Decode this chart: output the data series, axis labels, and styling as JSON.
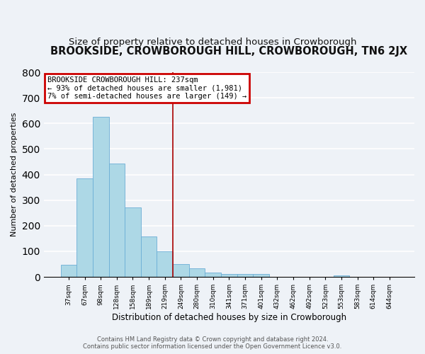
{
  "title": "BROOKSIDE, CROWBOROUGH HILL, CROWBOROUGH, TN6 2JX",
  "subtitle": "Size of property relative to detached houses in Crowborough",
  "xlabel": "Distribution of detached houses by size in Crowborough",
  "ylabel": "Number of detached properties",
  "footer_line1": "Contains HM Land Registry data © Crown copyright and database right 2024.",
  "footer_line2": "Contains public sector information licensed under the Open Government Licence v3.0.",
  "bar_labels": [
    "37sqm",
    "67sqm",
    "98sqm",
    "128sqm",
    "158sqm",
    "189sqm",
    "219sqm",
    "249sqm",
    "280sqm",
    "310sqm",
    "341sqm",
    "371sqm",
    "401sqm",
    "432sqm",
    "462sqm",
    "492sqm",
    "523sqm",
    "553sqm",
    "583sqm",
    "614sqm",
    "644sqm"
  ],
  "bar_values": [
    48,
    385,
    625,
    443,
    270,
    157,
    99,
    51,
    32,
    17,
    11,
    11,
    11,
    0,
    0,
    0,
    0,
    7,
    0,
    0,
    0
  ],
  "bar_color": "#add8e6",
  "bar_edge_color": "#6baed6",
  "vline_x_index": 6.5,
  "vline_color": "#aa0000",
  "annotation_title": "BROOKSIDE CROWBOROUGH HILL: 237sqm",
  "annotation_line1": "← 93% of detached houses are smaller (1,981)",
  "annotation_line2": "7% of semi-detached houses are larger (149) →",
  "annotation_box_color": "#cc0000",
  "annotation_text_color": "#000000",
  "annotation_bg_color": "#ffffff",
  "ylim": [
    0,
    800
  ],
  "yticks": [
    0,
    100,
    200,
    300,
    400,
    500,
    600,
    700,
    800
  ],
  "background_color": "#eef2f7",
  "plot_bg_color": "#eef2f7",
  "grid_color": "#ffffff",
  "title_fontsize": 10.5,
  "subtitle_fontsize": 9.5
}
